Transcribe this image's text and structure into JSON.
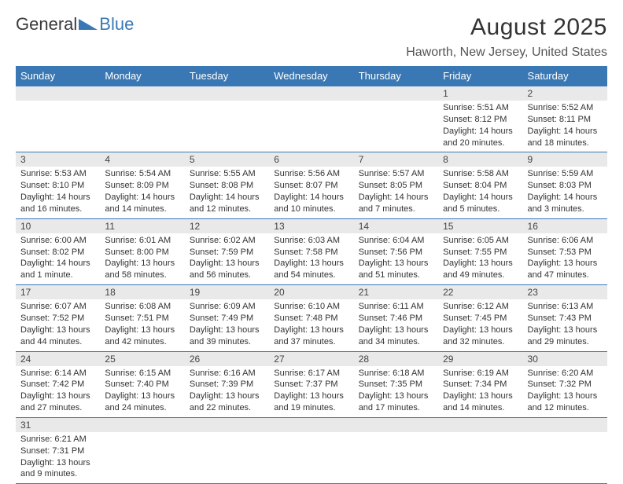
{
  "logo": {
    "text1": "General",
    "text2": "Blue"
  },
  "title": "August 2025",
  "location": "Haworth, New Jersey, United States",
  "colors": {
    "header_bg": "#3a78b5",
    "header_text": "#ffffff",
    "daynum_bg": "#e9e9e9",
    "border": "#3a78b5",
    "body_text": "#333333",
    "logo_gray": "#3a3a3a",
    "logo_blue": "#3a78b5"
  },
  "day_headers": [
    "Sunday",
    "Monday",
    "Tuesday",
    "Wednesday",
    "Thursday",
    "Friday",
    "Saturday"
  ],
  "weeks": [
    [
      {
        "n": "",
        "sr": "",
        "ss": "",
        "dl": ""
      },
      {
        "n": "",
        "sr": "",
        "ss": "",
        "dl": ""
      },
      {
        "n": "",
        "sr": "",
        "ss": "",
        "dl": ""
      },
      {
        "n": "",
        "sr": "",
        "ss": "",
        "dl": ""
      },
      {
        "n": "",
        "sr": "",
        "ss": "",
        "dl": ""
      },
      {
        "n": "1",
        "sr": "Sunrise: 5:51 AM",
        "ss": "Sunset: 8:12 PM",
        "dl": "Daylight: 14 hours and 20 minutes."
      },
      {
        "n": "2",
        "sr": "Sunrise: 5:52 AM",
        "ss": "Sunset: 8:11 PM",
        "dl": "Daylight: 14 hours and 18 minutes."
      }
    ],
    [
      {
        "n": "3",
        "sr": "Sunrise: 5:53 AM",
        "ss": "Sunset: 8:10 PM",
        "dl": "Daylight: 14 hours and 16 minutes."
      },
      {
        "n": "4",
        "sr": "Sunrise: 5:54 AM",
        "ss": "Sunset: 8:09 PM",
        "dl": "Daylight: 14 hours and 14 minutes."
      },
      {
        "n": "5",
        "sr": "Sunrise: 5:55 AM",
        "ss": "Sunset: 8:08 PM",
        "dl": "Daylight: 14 hours and 12 minutes."
      },
      {
        "n": "6",
        "sr": "Sunrise: 5:56 AM",
        "ss": "Sunset: 8:07 PM",
        "dl": "Daylight: 14 hours and 10 minutes."
      },
      {
        "n": "7",
        "sr": "Sunrise: 5:57 AM",
        "ss": "Sunset: 8:05 PM",
        "dl": "Daylight: 14 hours and 7 minutes."
      },
      {
        "n": "8",
        "sr": "Sunrise: 5:58 AM",
        "ss": "Sunset: 8:04 PM",
        "dl": "Daylight: 14 hours and 5 minutes."
      },
      {
        "n": "9",
        "sr": "Sunrise: 5:59 AM",
        "ss": "Sunset: 8:03 PM",
        "dl": "Daylight: 14 hours and 3 minutes."
      }
    ],
    [
      {
        "n": "10",
        "sr": "Sunrise: 6:00 AM",
        "ss": "Sunset: 8:02 PM",
        "dl": "Daylight: 14 hours and 1 minute."
      },
      {
        "n": "11",
        "sr": "Sunrise: 6:01 AM",
        "ss": "Sunset: 8:00 PM",
        "dl": "Daylight: 13 hours and 58 minutes."
      },
      {
        "n": "12",
        "sr": "Sunrise: 6:02 AM",
        "ss": "Sunset: 7:59 PM",
        "dl": "Daylight: 13 hours and 56 minutes."
      },
      {
        "n": "13",
        "sr": "Sunrise: 6:03 AM",
        "ss": "Sunset: 7:58 PM",
        "dl": "Daylight: 13 hours and 54 minutes."
      },
      {
        "n": "14",
        "sr": "Sunrise: 6:04 AM",
        "ss": "Sunset: 7:56 PM",
        "dl": "Daylight: 13 hours and 51 minutes."
      },
      {
        "n": "15",
        "sr": "Sunrise: 6:05 AM",
        "ss": "Sunset: 7:55 PM",
        "dl": "Daylight: 13 hours and 49 minutes."
      },
      {
        "n": "16",
        "sr": "Sunrise: 6:06 AM",
        "ss": "Sunset: 7:53 PM",
        "dl": "Daylight: 13 hours and 47 minutes."
      }
    ],
    [
      {
        "n": "17",
        "sr": "Sunrise: 6:07 AM",
        "ss": "Sunset: 7:52 PM",
        "dl": "Daylight: 13 hours and 44 minutes."
      },
      {
        "n": "18",
        "sr": "Sunrise: 6:08 AM",
        "ss": "Sunset: 7:51 PM",
        "dl": "Daylight: 13 hours and 42 minutes."
      },
      {
        "n": "19",
        "sr": "Sunrise: 6:09 AM",
        "ss": "Sunset: 7:49 PM",
        "dl": "Daylight: 13 hours and 39 minutes."
      },
      {
        "n": "20",
        "sr": "Sunrise: 6:10 AM",
        "ss": "Sunset: 7:48 PM",
        "dl": "Daylight: 13 hours and 37 minutes."
      },
      {
        "n": "21",
        "sr": "Sunrise: 6:11 AM",
        "ss": "Sunset: 7:46 PM",
        "dl": "Daylight: 13 hours and 34 minutes."
      },
      {
        "n": "22",
        "sr": "Sunrise: 6:12 AM",
        "ss": "Sunset: 7:45 PM",
        "dl": "Daylight: 13 hours and 32 minutes."
      },
      {
        "n": "23",
        "sr": "Sunrise: 6:13 AM",
        "ss": "Sunset: 7:43 PM",
        "dl": "Daylight: 13 hours and 29 minutes."
      }
    ],
    [
      {
        "n": "24",
        "sr": "Sunrise: 6:14 AM",
        "ss": "Sunset: 7:42 PM",
        "dl": "Daylight: 13 hours and 27 minutes."
      },
      {
        "n": "25",
        "sr": "Sunrise: 6:15 AM",
        "ss": "Sunset: 7:40 PM",
        "dl": "Daylight: 13 hours and 24 minutes."
      },
      {
        "n": "26",
        "sr": "Sunrise: 6:16 AM",
        "ss": "Sunset: 7:39 PM",
        "dl": "Daylight: 13 hours and 22 minutes."
      },
      {
        "n": "27",
        "sr": "Sunrise: 6:17 AM",
        "ss": "Sunset: 7:37 PM",
        "dl": "Daylight: 13 hours and 19 minutes."
      },
      {
        "n": "28",
        "sr": "Sunrise: 6:18 AM",
        "ss": "Sunset: 7:35 PM",
        "dl": "Daylight: 13 hours and 17 minutes."
      },
      {
        "n": "29",
        "sr": "Sunrise: 6:19 AM",
        "ss": "Sunset: 7:34 PM",
        "dl": "Daylight: 13 hours and 14 minutes."
      },
      {
        "n": "30",
        "sr": "Sunrise: 6:20 AM",
        "ss": "Sunset: 7:32 PM",
        "dl": "Daylight: 13 hours and 12 minutes."
      }
    ],
    [
      {
        "n": "31",
        "sr": "Sunrise: 6:21 AM",
        "ss": "Sunset: 7:31 PM",
        "dl": "Daylight: 13 hours and 9 minutes."
      },
      {
        "n": "",
        "sr": "",
        "ss": "",
        "dl": ""
      },
      {
        "n": "",
        "sr": "",
        "ss": "",
        "dl": ""
      },
      {
        "n": "",
        "sr": "",
        "ss": "",
        "dl": ""
      },
      {
        "n": "",
        "sr": "",
        "ss": "",
        "dl": ""
      },
      {
        "n": "",
        "sr": "",
        "ss": "",
        "dl": ""
      },
      {
        "n": "",
        "sr": "",
        "ss": "",
        "dl": ""
      }
    ]
  ]
}
